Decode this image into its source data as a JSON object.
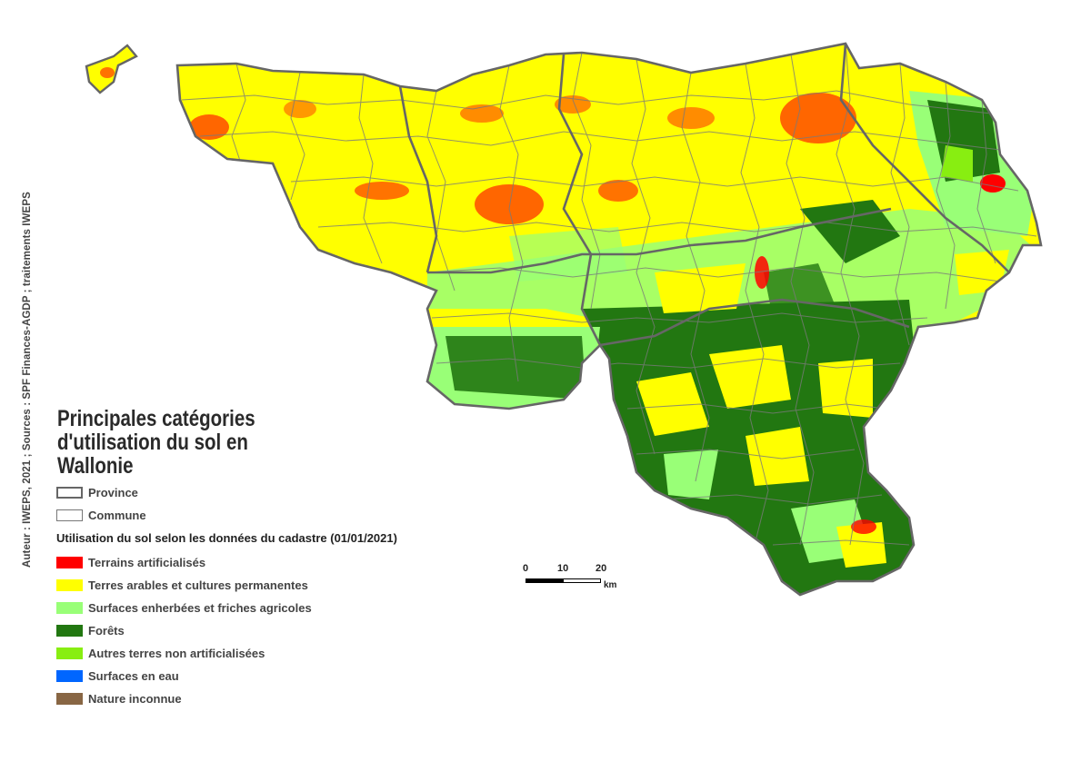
{
  "map": {
    "title": "Principales catégories d'utilisation du sol en Wallonie",
    "credit": "Auteur : IWEPS, 2021 ; Sources : SPF Finances-AGDP ; traitements IWEPS",
    "boundary_legend": [
      {
        "label": "Province",
        "style": "province"
      },
      {
        "label": "Commune",
        "style": "commune"
      }
    ],
    "landuse_heading": "Utilisation du sol selon les données du cadastre (01/01/2021)",
    "landuse_legend": [
      {
        "label": "Terrains artificialisés",
        "color": "#ff0000"
      },
      {
        "label": "Terres arables et cultures permanentes",
        "color": "#ffff00"
      },
      {
        "label": "Surfaces enherbées et friches agricoles",
        "color": "#99ff77"
      },
      {
        "label": "Forêts",
        "color": "#227711"
      },
      {
        "label": "Autres terres non artificialisées",
        "color": "#88ee11"
      },
      {
        "label": "Surfaces en eau",
        "color": "#0066ff"
      },
      {
        "label": "Nature inconnue",
        "color": "#886644"
      }
    ],
    "scale_bar": {
      "ticks": [
        "0",
        "10",
        "20"
      ],
      "unit": "km"
    }
  }
}
